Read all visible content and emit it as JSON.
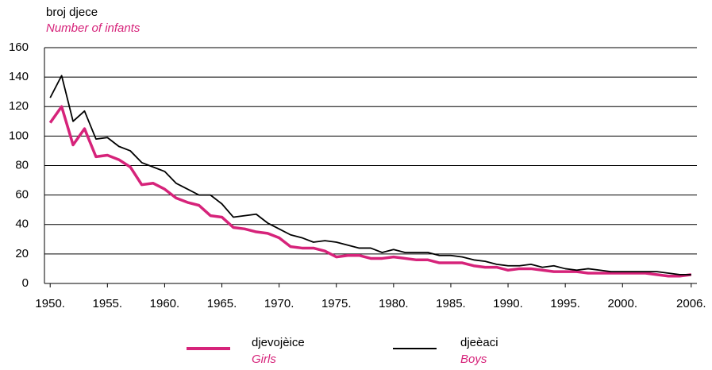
{
  "chart_data": {
    "type": "line",
    "ylabel": "broj djece",
    "ylabel_en": "Number of infants",
    "x": [
      1950,
      1951,
      1952,
      1953,
      1954,
      1955,
      1956,
      1957,
      1958,
      1959,
      1960,
      1961,
      1962,
      1963,
      1964,
      1965,
      1966,
      1967,
      1968,
      1969,
      1970,
      1971,
      1972,
      1973,
      1974,
      1975,
      1976,
      1977,
      1978,
      1979,
      1980,
      1981,
      1982,
      1983,
      1984,
      1985,
      1986,
      1987,
      1988,
      1989,
      1990,
      1991,
      1992,
      1993,
      1994,
      1995,
      1996,
      1997,
      1998,
      1999,
      2000,
      2001,
      2002,
      2003,
      2004,
      2005,
      2006
    ],
    "series": [
      {
        "name": "djevojèice",
        "name_en": "Girls",
        "color": "#d6237a",
        "values": [
          109,
          120,
          94,
          105,
          86,
          87,
          84,
          79,
          67,
          68,
          64,
          58,
          55,
          53,
          46,
          45,
          38,
          37,
          35,
          34,
          31,
          25,
          24,
          24,
          22,
          18,
          19,
          19,
          17,
          17,
          18,
          17,
          16,
          16,
          14,
          14,
          14,
          12,
          11,
          11,
          9,
          10,
          10,
          9,
          8,
          8,
          8,
          7,
          7,
          7,
          7,
          7,
          7,
          6,
          5,
          5,
          6
        ]
      },
      {
        "name": "djeèaci",
        "name_en": "Boys",
        "color": "#000000",
        "values": [
          126,
          141,
          110,
          117,
          98,
          99,
          93,
          90,
          82,
          79,
          76,
          68,
          64,
          60,
          60,
          54,
          45,
          46,
          47,
          41,
          37,
          33,
          31,
          28,
          29,
          28,
          26,
          24,
          24,
          21,
          23,
          21,
          21,
          21,
          19,
          19,
          18,
          16,
          15,
          13,
          12,
          12,
          13,
          11,
          12,
          10,
          9,
          10,
          9,
          8,
          8,
          8,
          8,
          8,
          7,
          6,
          6
        ]
      }
    ],
    "xlim": [
      1949.5,
      2006.5
    ],
    "xticks": [
      {
        "value": 1950,
        "label": "1950."
      },
      {
        "value": 1955,
        "label": "1955."
      },
      {
        "value": 1960,
        "label": "1960."
      },
      {
        "value": 1965,
        "label": "1965."
      },
      {
        "value": 1970,
        "label": "1970."
      },
      {
        "value": 1975,
        "label": "1975."
      },
      {
        "value": 1980,
        "label": "1980."
      },
      {
        "value": 1985,
        "label": "1985."
      },
      {
        "value": 1990,
        "label": "1990."
      },
      {
        "value": 1995,
        "label": "1995."
      },
      {
        "value": 2000,
        "label": "2000."
      },
      {
        "value": 2006,
        "label": "2006."
      }
    ],
    "ylim": [
      0,
      160
    ],
    "yticks": [
      0,
      20,
      40,
      60,
      80,
      100,
      120,
      140,
      160
    ],
    "grid": true
  }
}
